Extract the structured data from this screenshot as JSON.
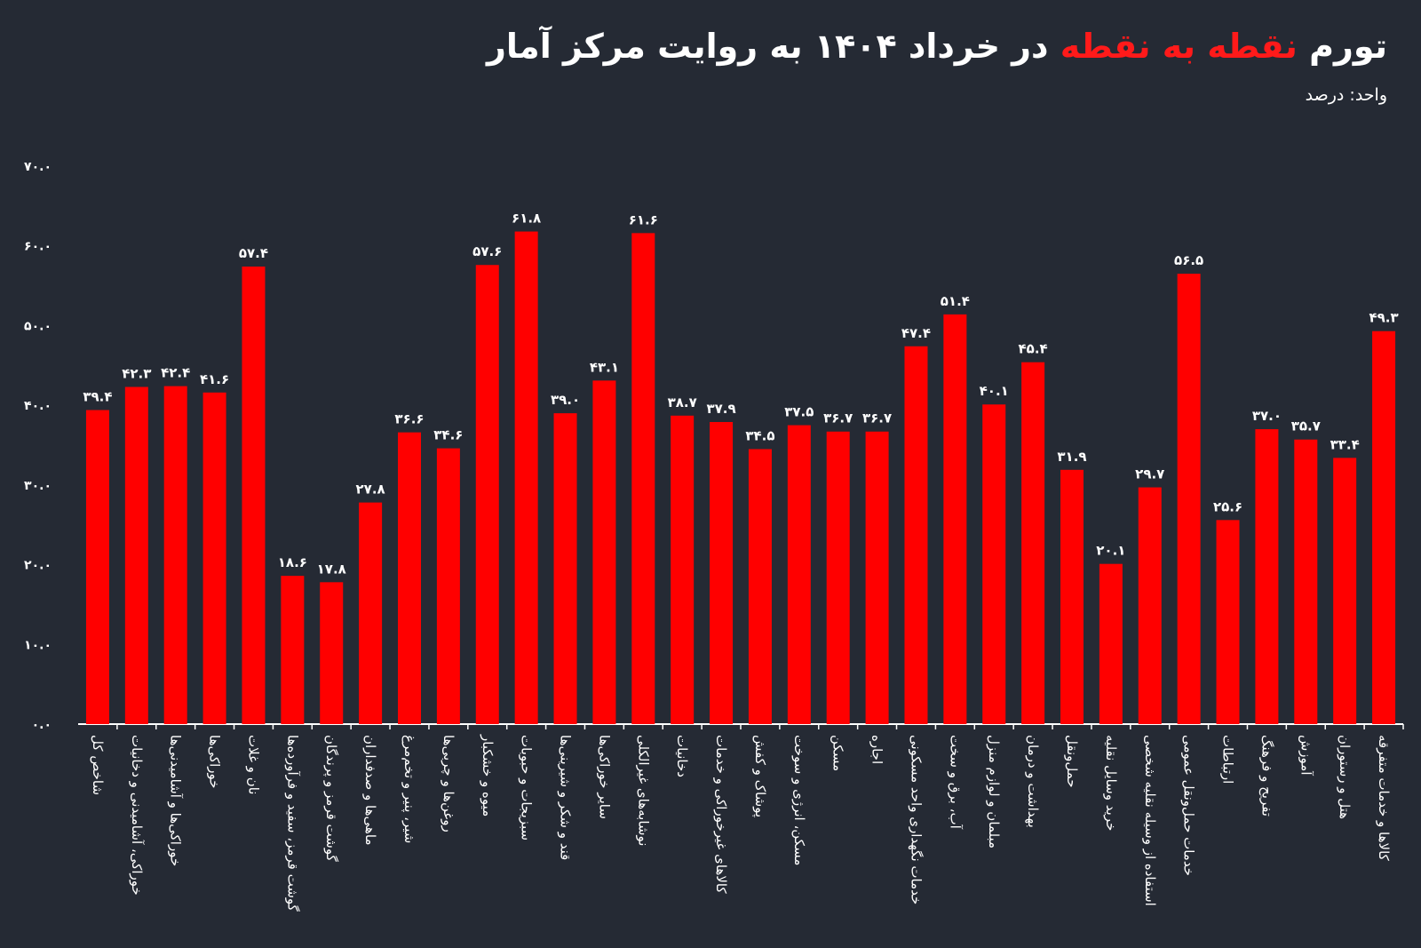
{
  "header": {
    "title_part1": "تورم",
    "title_highlight": "نقطه به نقطه",
    "title_part2": "در خرداد ۱۴۰۴ به روایت مرکز آمار",
    "subtitle": "واحد: درصد"
  },
  "colors": {
    "background": "#252a34",
    "bar": "#ff0000",
    "highlight": "#ff1a1a",
    "text": "#ffffff",
    "axis": "#ffffff"
  },
  "chart_data": {
    "type": "bar",
    "title": "تورم نقطه به نقطه در خرداد ۱۴۰۴ به روایت مرکز آمار",
    "ylabel": "واحد: درصد",
    "ylim": [
      0,
      70
    ],
    "grid": false,
    "yticks": [
      0,
      10,
      20,
      30,
      40,
      50,
      60,
      70
    ],
    "ytick_labels": [
      "۰.۰",
      "۱۰.۰",
      "۲۰.۰",
      "۳۰.۰",
      "۴۰.۰",
      "۵۰.۰",
      "۶۰.۰",
      "۷۰.۰"
    ],
    "categories": [
      "شاخص کل",
      "خوراکی، آشامیدنی و دخانیات",
      "خوراکی‌ها و آشامیدنی‌ها",
      "خوراکی‌ها",
      "نان و غلات",
      "گوشت قرمز، سفید و فرآورده‌ها",
      "گوشت قرمز و پرندگان",
      "ماهی‌ها و صدفداران",
      "شیر، پنیر و تخم‌مرغ",
      "روغن‌ها و چربی‌ها",
      "میوه و خشکبار",
      "سبزیجات و حبوبات",
      "قند و شکر و شیرینی‌ها",
      "سایر خوراکی‌ها",
      "نوشابه‌های غیرالکلی",
      "دخانیات",
      "کالاهای غیرخوراکی و خدمات",
      "پوشاک و کفش",
      "مسکن، انرژی و سوخت",
      "مسکن",
      "اجاره",
      "خدمات نگهداری واحد مسکونی",
      "آب، برق و سخت",
      "مبلمان و لوازم منزل",
      "بهداشت و درمان",
      "حمل‌ونقل",
      "خرید وسایل نقلیه",
      "استفاده از وسیله نقلیه شخصی",
      "خدمات حمل‌ونقل عمومی",
      "ارتباطات",
      "تفریح و فرهنگ",
      "آموزش",
      "هتل و رستوران",
      "کالاها و خدمات متفرقه"
    ],
    "values": [
      39.4,
      42.3,
      42.4,
      41.6,
      57.4,
      18.6,
      17.8,
      27.8,
      36.6,
      34.6,
      57.6,
      61.8,
      39.0,
      43.1,
      61.6,
      38.7,
      37.9,
      34.5,
      37.5,
      36.7,
      36.7,
      47.4,
      51.4,
      40.1,
      45.4,
      31.9,
      20.1,
      29.7,
      56.5,
      25.6,
      37.0,
      35.7,
      33.4,
      49.3
    ],
    "value_labels": [
      "۳۹.۴",
      "۴۲.۳",
      "۴۲.۴",
      "۴۱.۶",
      "۵۷.۴",
      "۱۸.۶",
      "۱۷.۸",
      "۲۷.۸",
      "۳۶.۶",
      "۳۴.۶",
      "۵۷.۶",
      "۶۱.۸",
      "۳۹.۰",
      "۴۳.۱",
      "۶۱.۶",
      "۳۸.۷",
      "۳۷.۹",
      "۳۴.۵",
      "۳۷.۵",
      "۳۶.۷",
      "۳۶.۷",
      "۴۷.۴",
      "۵۱.۴",
      "۴۰.۱",
      "۴۵.۴",
      "۳۱.۹",
      "۲۰.۱",
      "۲۹.۷",
      "۵۶.۵",
      "۲۵.۶",
      "۳۷.۰",
      "۳۵.۷",
      "۳۳.۴",
      "۴۹.۳"
    ]
  }
}
